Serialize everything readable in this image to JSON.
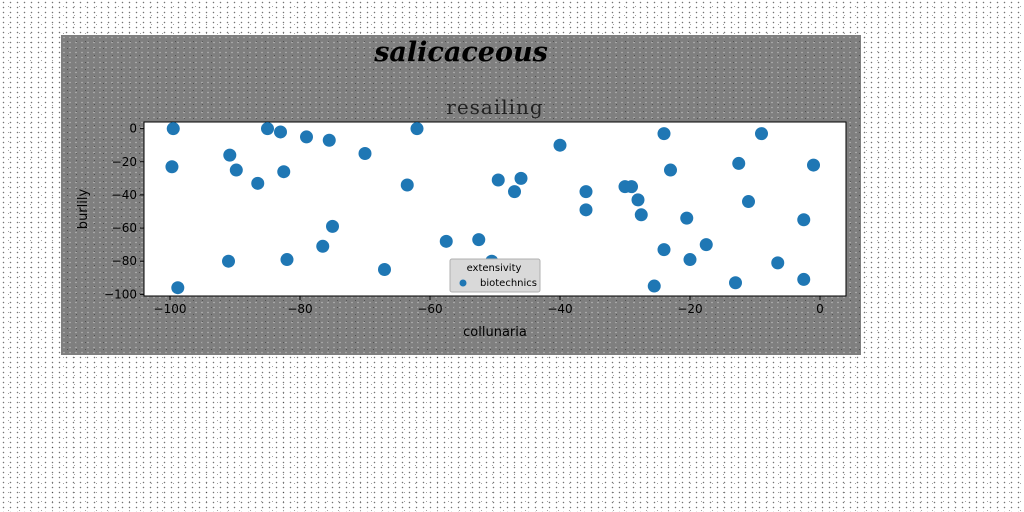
{
  "figure": {
    "suptitle": "salicaceous",
    "background": "#7f7f7f"
  },
  "chart_data": {
    "type": "scatter",
    "title": "resailing",
    "xlabel": "collunaria",
    "ylabel": "burlily",
    "xlim": [
      -104,
      4
    ],
    "ylim": [
      -101,
      4
    ],
    "xticks": [
      -100,
      -80,
      -60,
      -40,
      -20,
      0
    ],
    "yticks": [
      0,
      -20,
      -40,
      -60,
      -80,
      -100
    ],
    "grid": false,
    "legend": {
      "title": "extensivity",
      "placement": "lower-center"
    },
    "series": [
      {
        "name": "biotechnics",
        "color": "#1f77b4",
        "points": [
          [
            -99.5,
            0
          ],
          [
            -99.7,
            -23
          ],
          [
            -98.8,
            -96
          ],
          [
            -90.8,
            -16
          ],
          [
            -89.8,
            -25
          ],
          [
            -91,
            -80
          ],
          [
            -85,
            0
          ],
          [
            -86.5,
            -33
          ],
          [
            -83,
            -2
          ],
          [
            -82.5,
            -26
          ],
          [
            -82,
            -79
          ],
          [
            -79,
            -5
          ],
          [
            -75.5,
            -7
          ],
          [
            -75,
            -59
          ],
          [
            -76.5,
            -71
          ],
          [
            -70,
            -15
          ],
          [
            -67,
            -85
          ],
          [
            -63.5,
            -34
          ],
          [
            -62,
            0
          ],
          [
            -57.5,
            -68
          ],
          [
            -52.5,
            -67
          ],
          [
            -50.5,
            -80
          ],
          [
            -49.5,
            -31
          ],
          [
            -47,
            -38
          ],
          [
            -46,
            -30
          ],
          [
            -40,
            -10
          ],
          [
            -36,
            -38
          ],
          [
            -36,
            -49
          ],
          [
            -30,
            -35
          ],
          [
            -29,
            -35
          ],
          [
            -28,
            -43
          ],
          [
            -27.5,
            -52
          ],
          [
            -25.5,
            -95
          ],
          [
            -24,
            -3
          ],
          [
            -24,
            -73
          ],
          [
            -23,
            -25
          ],
          [
            -20.5,
            -54
          ],
          [
            -20,
            -79
          ],
          [
            -17.5,
            -70
          ],
          [
            -13,
            -93
          ],
          [
            -12.5,
            -21
          ],
          [
            -11,
            -44
          ],
          [
            -9,
            -3
          ],
          [
            -6.5,
            -81
          ],
          [
            -2.5,
            -55
          ],
          [
            -2.5,
            -91
          ],
          [
            -1,
            -22
          ]
        ]
      }
    ]
  }
}
